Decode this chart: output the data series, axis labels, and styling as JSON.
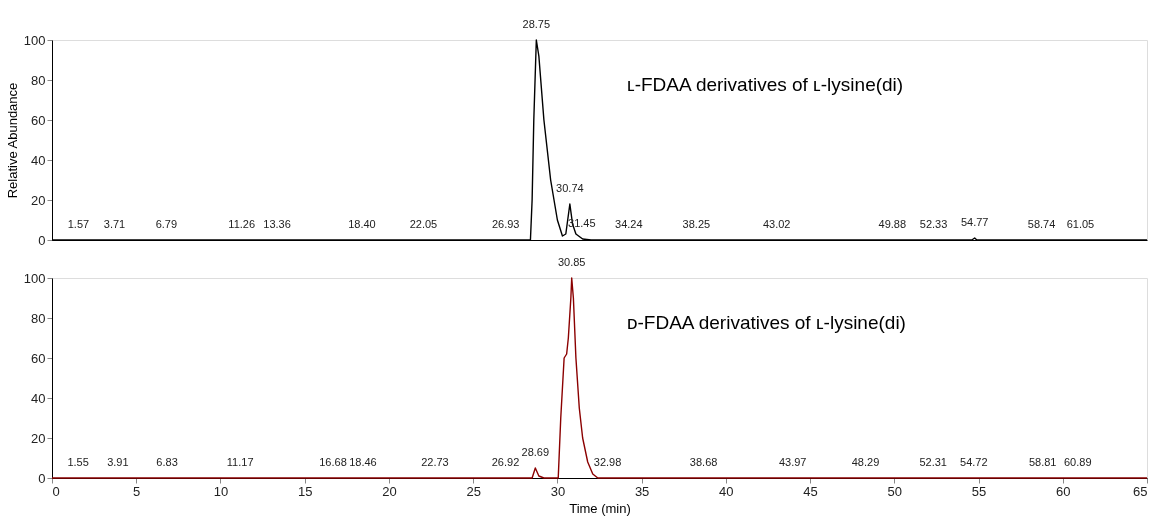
{
  "chart_data": [
    {
      "type": "line",
      "ylabel": "Relative Abundance",
      "xlim": [
        0,
        65
      ],
      "xticks": [
        0,
        5,
        10,
        15,
        20,
        25,
        30,
        35,
        40,
        45,
        50,
        55,
        60,
        65
      ],
      "ylim": [
        0,
        100
      ],
      "yticks": [
        0,
        20,
        40,
        60,
        80,
        100
      ],
      "tick_labels": "y",
      "grid": false,
      "series": [
        {
          "color": "#000000",
          "x": [
            0,
            28.4,
            28.5,
            28.6,
            28.75,
            28.9,
            29.2,
            29.6,
            30.0,
            30.3,
            30.5,
            30.74,
            30.9,
            31.1,
            31.5,
            32.0,
            54.6,
            54.77,
            54.9,
            65
          ],
          "values": [
            0,
            0,
            20,
            60,
            100,
            92,
            60,
            30,
            10,
            2,
            3,
            18,
            8,
            3,
            0.5,
            0,
            0,
            1,
            0,
            0
          ]
        }
      ],
      "annotations": [
        {
          "text": "1.57",
          "x": 1.57,
          "y": 0
        },
        {
          "text": "3.71",
          "x": 3.71,
          "y": 0
        },
        {
          "text": "6.79",
          "x": 6.79,
          "y": 0
        },
        {
          "text": "11.26",
          "x": 11.26,
          "y": 0
        },
        {
          "text": "13.36",
          "x": 13.36,
          "y": 0
        },
        {
          "text": "18.40",
          "x": 18.4,
          "y": 0
        },
        {
          "text": "22.05",
          "x": 22.05,
          "y": 0
        },
        {
          "text": "26.93",
          "x": 26.93,
          "y": 0
        },
        {
          "text": "28.75",
          "x": 28.75,
          "y": 100
        },
        {
          "text": "30.74",
          "x": 30.74,
          "y": 18
        },
        {
          "text": "31.45",
          "x": 31.45,
          "y": 0.5
        },
        {
          "text": "34.24",
          "x": 34.24,
          "y": 0
        },
        {
          "text": "38.25",
          "x": 38.25,
          "y": 0
        },
        {
          "text": "43.02",
          "x": 43.02,
          "y": 0
        },
        {
          "text": "49.88",
          "x": 49.88,
          "y": 0
        },
        {
          "text": "52.33",
          "x": 52.33,
          "y": 0
        },
        {
          "text": "54.77",
          "x": 54.77,
          "y": 1
        },
        {
          "text": "58.74",
          "x": 58.74,
          "y": 0
        },
        {
          "text": "61.05",
          "x": 61.05,
          "y": 0
        },
        "ʟ-FDAA derivatives of ʟ-lysine(di)"
      ]
    },
    {
      "type": "line",
      "xlabel": "Time (min)",
      "xlim": [
        0,
        65
      ],
      "xticks": [
        0,
        5,
        10,
        15,
        20,
        25,
        30,
        35,
        40,
        45,
        50,
        55,
        60,
        65
      ],
      "ylim": [
        0,
        100
      ],
      "yticks": [
        0,
        20,
        40,
        60,
        80,
        100
      ],
      "grid": false,
      "series": [
        {
          "color": "#8b0000",
          "x": [
            0,
            28.5,
            28.69,
            28.9,
            29.2,
            30.05,
            30.2,
            30.4,
            30.55,
            30.65,
            30.8,
            30.85,
            30.95,
            31.1,
            31.3,
            31.5,
            31.8,
            32.1,
            32.4,
            65
          ],
          "values": [
            0,
            0,
            5,
            1,
            0,
            0,
            30,
            60,
            62,
            70,
            90,
            100,
            90,
            60,
            35,
            20,
            8,
            2,
            0,
            0
          ]
        }
      ],
      "annotations": [
        {
          "text": "1.55",
          "x": 1.55,
          "y": 0
        },
        {
          "text": "3.91",
          "x": 3.91,
          "y": 0
        },
        {
          "text": "6.83",
          "x": 6.83,
          "y": 0
        },
        {
          "text": "11.17",
          "x": 11.17,
          "y": 0
        },
        {
          "text": "16.68",
          "x": 16.68,
          "y": 0
        },
        {
          "text": "18.46",
          "x": 18.46,
          "y": 0
        },
        {
          "text": "22.73",
          "x": 22.73,
          "y": 0
        },
        {
          "text": "26.92",
          "x": 26.92,
          "y": 0
        },
        {
          "text": "28.69",
          "x": 28.69,
          "y": 5
        },
        {
          "text": "30.85",
          "x": 30.85,
          "y": 100
        },
        {
          "text": "32.98",
          "x": 32.98,
          "y": 0
        },
        {
          "text": "38.68",
          "x": 38.68,
          "y": 0
        },
        {
          "text": "43.97",
          "x": 43.97,
          "y": 0
        },
        {
          "text": "48.29",
          "x": 48.29,
          "y": 0
        },
        {
          "text": "52.31",
          "x": 52.31,
          "y": 0
        },
        {
          "text": "54.72",
          "x": 54.72,
          "y": 0
        },
        {
          "text": "58.81",
          "x": 58.81,
          "y": 0
        },
        {
          "text": "60.89",
          "x": 60.89,
          "y": 0
        },
        "ᴅ-FDAA derivatives of ʟ-lysine(di)"
      ]
    }
  ]
}
